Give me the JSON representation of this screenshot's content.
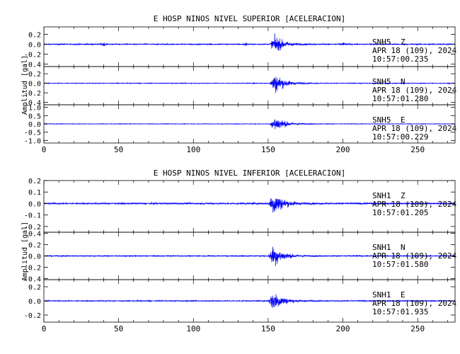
{
  "chart_data": [
    {
      "type": "line",
      "title": "E HOSP NINOS NIVEL SUPERIOR [ACELERACION]",
      "ylabel": "Amplitud [gal]",
      "xlim": [
        0,
        275
      ],
      "xticks": [
        "0",
        "50",
        "100",
        "150",
        "200",
        "250"
      ],
      "line_color": "#0000ff",
      "series": [
        {
          "name": "SNH5 Z",
          "channel": "SNH5",
          "component": "Z",
          "date": "APR 18 (109), 2024",
          "time": "10:57:00.235",
          "ylim": [
            -0.45,
            0.35
          ],
          "yticks": [
            "0.2",
            "0.0",
            "-0.2",
            "-0.4"
          ],
          "noise": 0.018,
          "peak": 0.32,
          "event_center": 157
        },
        {
          "name": "SNH5 N",
          "channel": "SNH5",
          "component": "N",
          "date": "APR 18 (109), 2024",
          "time": "10:57:01.280",
          "ylim": [
            -0.45,
            0.35
          ],
          "yticks": [
            "0.2",
            "0.0",
            "-0.2",
            "-0.4"
          ],
          "noise": 0.012,
          "peak": 0.38,
          "event_center": 157
        },
        {
          "name": "SNH5 E",
          "channel": "SNH5",
          "component": "E",
          "date": "APR 18 (109), 2024",
          "time": "10:57:00.229",
          "ylim": [
            -1.15,
            1.15
          ],
          "yticks": [
            "1.0",
            "0.5",
            "0.0",
            "-0.5",
            "-1.0"
          ],
          "noise": 0.03,
          "peak": 0.9,
          "event_center": 157
        }
      ]
    },
    {
      "type": "line",
      "title": "E HOSP NINOS NIVEL INFERIOR [ACELERACION]",
      "ylabel": "Amplitud [gal]",
      "xlim": [
        0,
        275
      ],
      "xticks": [
        "0",
        "50",
        "100",
        "150",
        "200",
        "250"
      ],
      "line_color": "#0000ff",
      "series": [
        {
          "name": "SNH1 Z",
          "channel": "SNH1",
          "component": "Z",
          "date": "APR 18 (109), 2024",
          "time": "10:57:01.205",
          "ylim": [
            -0.25,
            0.2
          ],
          "yticks": [
            "0.2",
            "0.1",
            "0.0",
            "-0.1",
            "-0.2"
          ],
          "noise": 0.012,
          "peak": 0.19,
          "event_center": 156
        },
        {
          "name": "SNH1 N",
          "channel": "SNH1",
          "component": "N",
          "date": "APR 18 (109), 2024",
          "time": "10:57:01.580",
          "ylim": [
            -0.42,
            0.42
          ],
          "yticks": [
            "0.4",
            "0.2",
            "0.0",
            "-0.2",
            "-0.4"
          ],
          "noise": 0.015,
          "peak": 0.36,
          "event_center": 156
        },
        {
          "name": "SNH1 E",
          "channel": "SNH1",
          "component": "E",
          "date": "APR 18 (109), 2024",
          "time": "10:57:01.935",
          "ylim": [
            -0.3,
            0.3
          ],
          "yticks": [
            "0.2",
            "0.0",
            "-0.2"
          ],
          "noise": 0.012,
          "peak": 0.27,
          "event_center": 156
        }
      ]
    }
  ]
}
